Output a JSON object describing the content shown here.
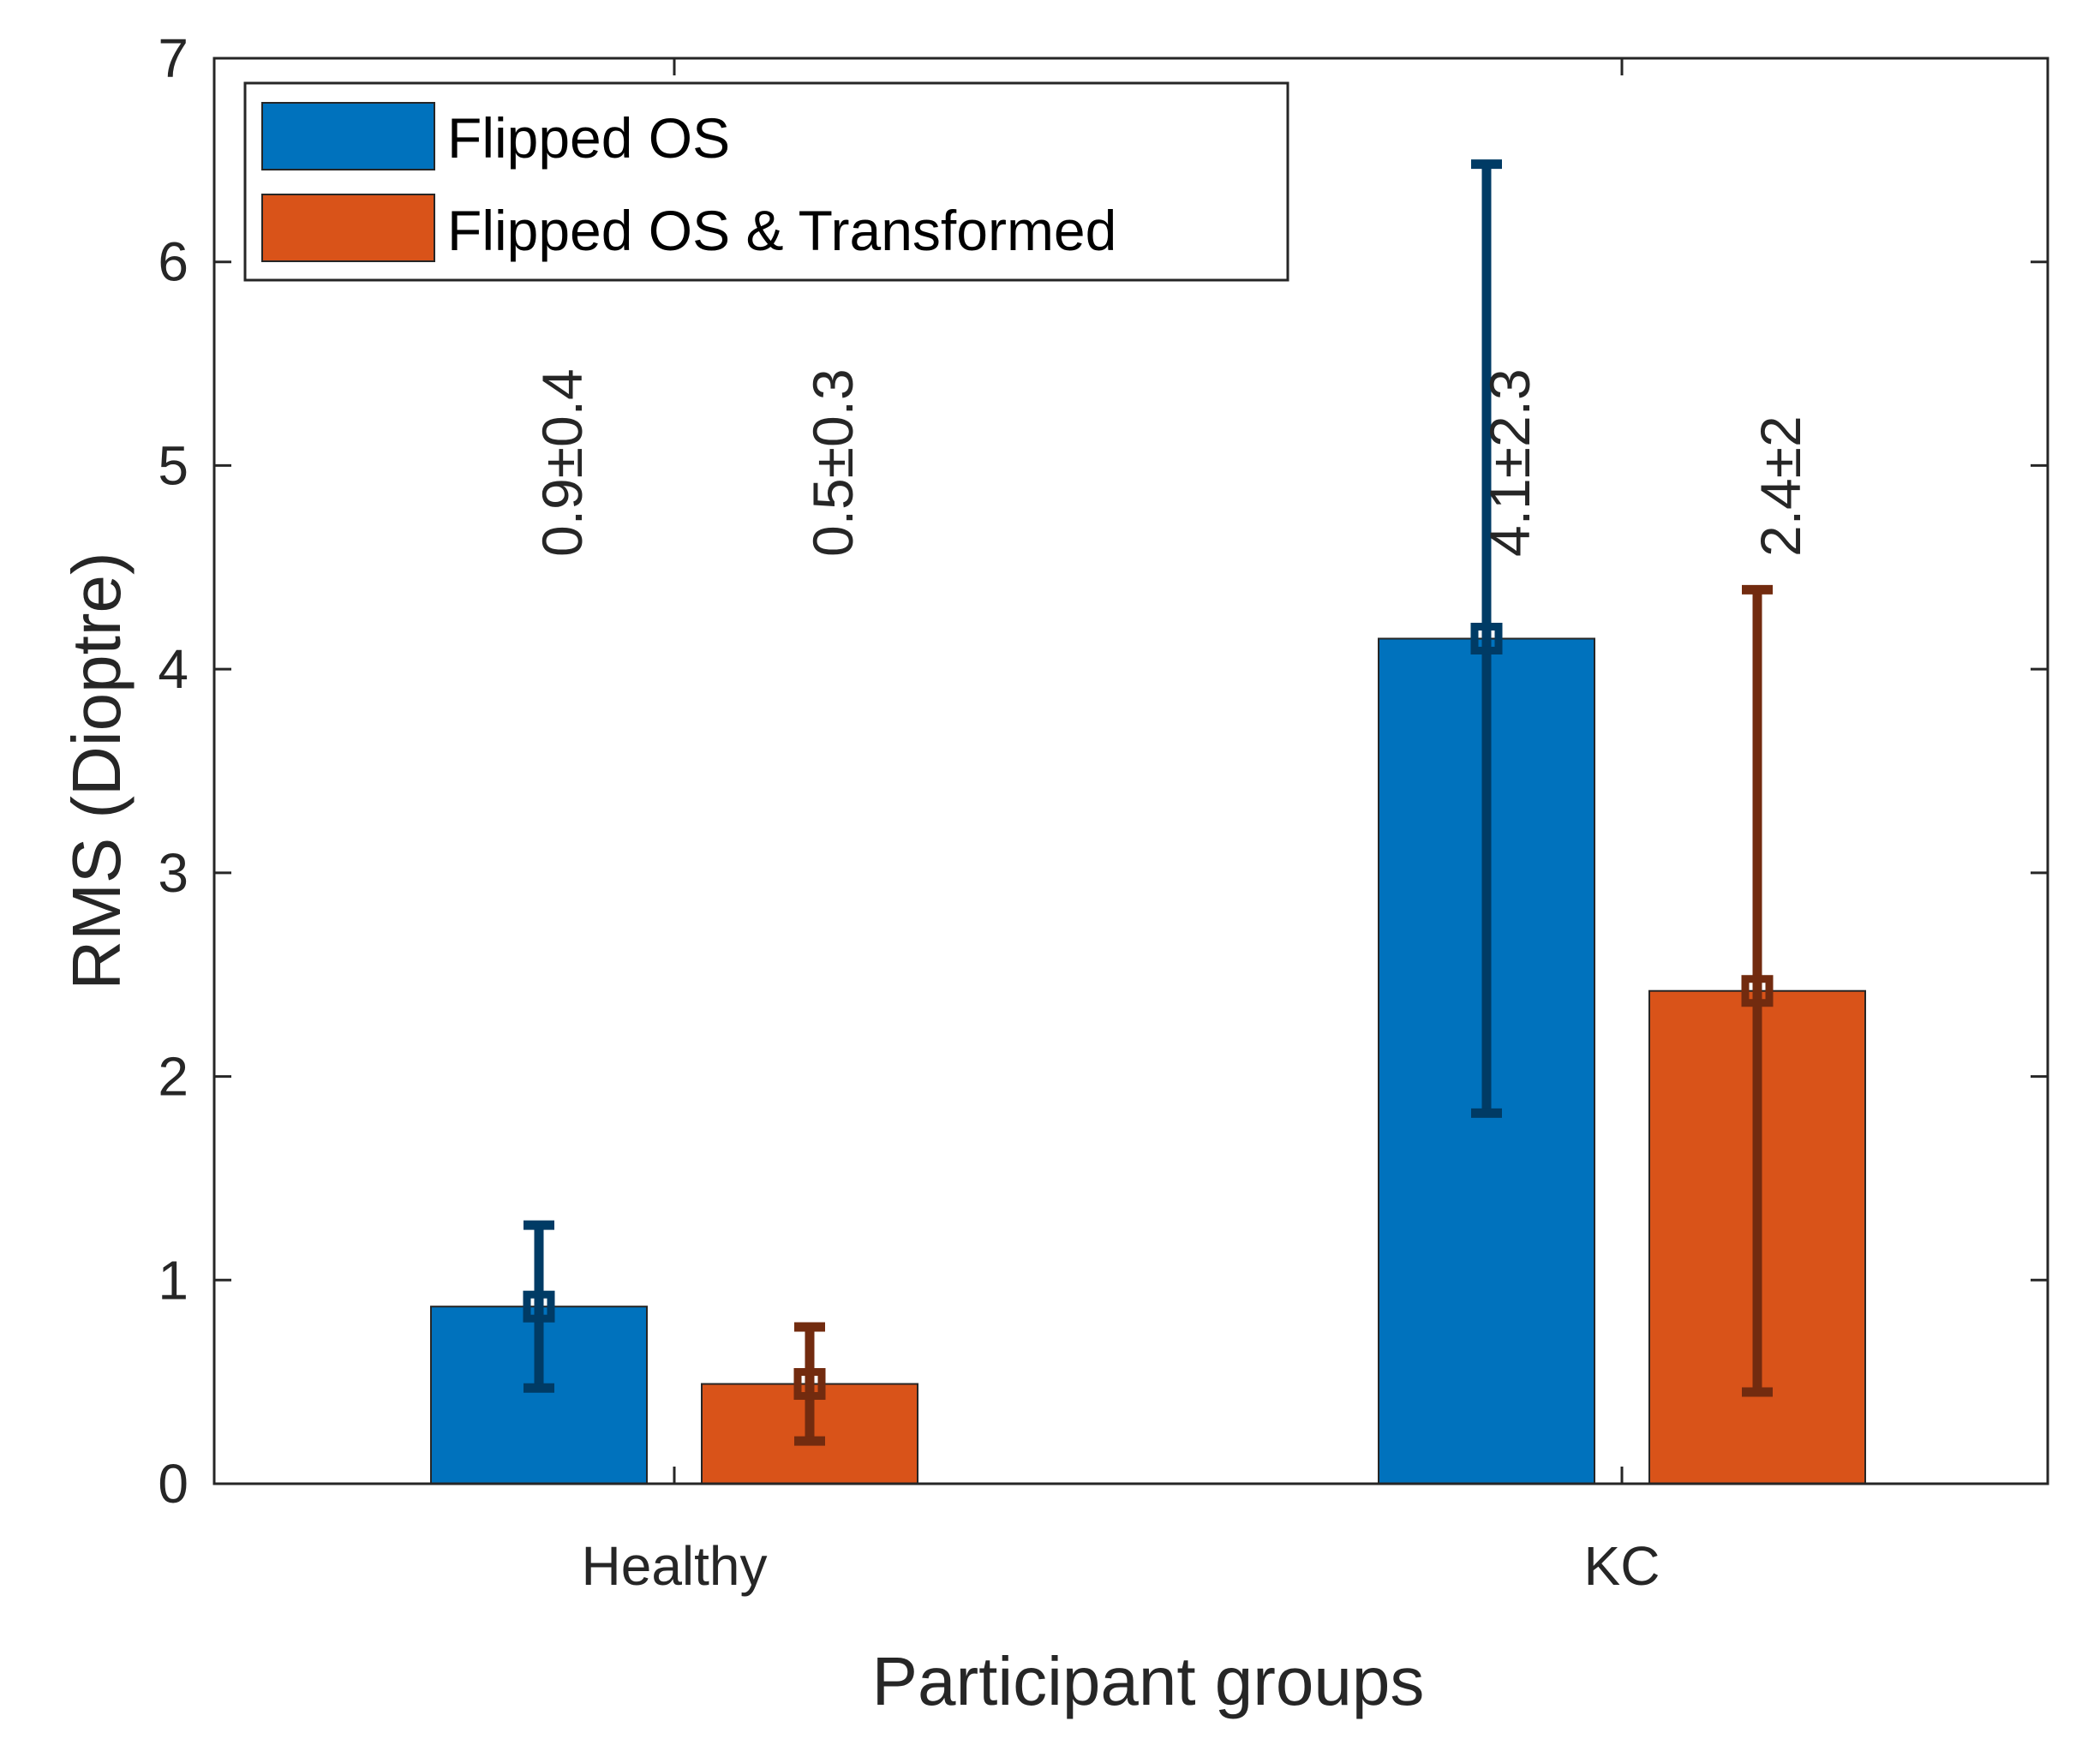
{
  "chart_data": {
    "type": "bar",
    "title": "",
    "xlabel": "Participant groups",
    "ylabel": "RMS (Dioptre)",
    "categories": [
      "Healthy",
      "KC"
    ],
    "ylim": [
      0,
      7
    ],
    "yticks": [
      "0",
      "1",
      "2",
      "3",
      "4",
      "5",
      "6",
      "7"
    ],
    "grid": false,
    "legend_position": "top-left",
    "series": [
      {
        "name": "Flipped OS",
        "color": "#0072BD",
        "error_color": "#003B65",
        "values": [
          0.87,
          4.15
        ],
        "errors": [
          0.4,
          2.33
        ],
        "labels": [
          "0.9±0.4",
          "4.1±2.3"
        ]
      },
      {
        "name": "Flipped OS & Transformed",
        "color": "#D95319",
        "error_color": "#722B0F",
        "values": [
          0.49,
          2.42
        ],
        "errors": [
          0.28,
          1.97
        ],
        "labels": [
          "0.5±0.3",
          "2.4±2"
        ]
      }
    ]
  }
}
